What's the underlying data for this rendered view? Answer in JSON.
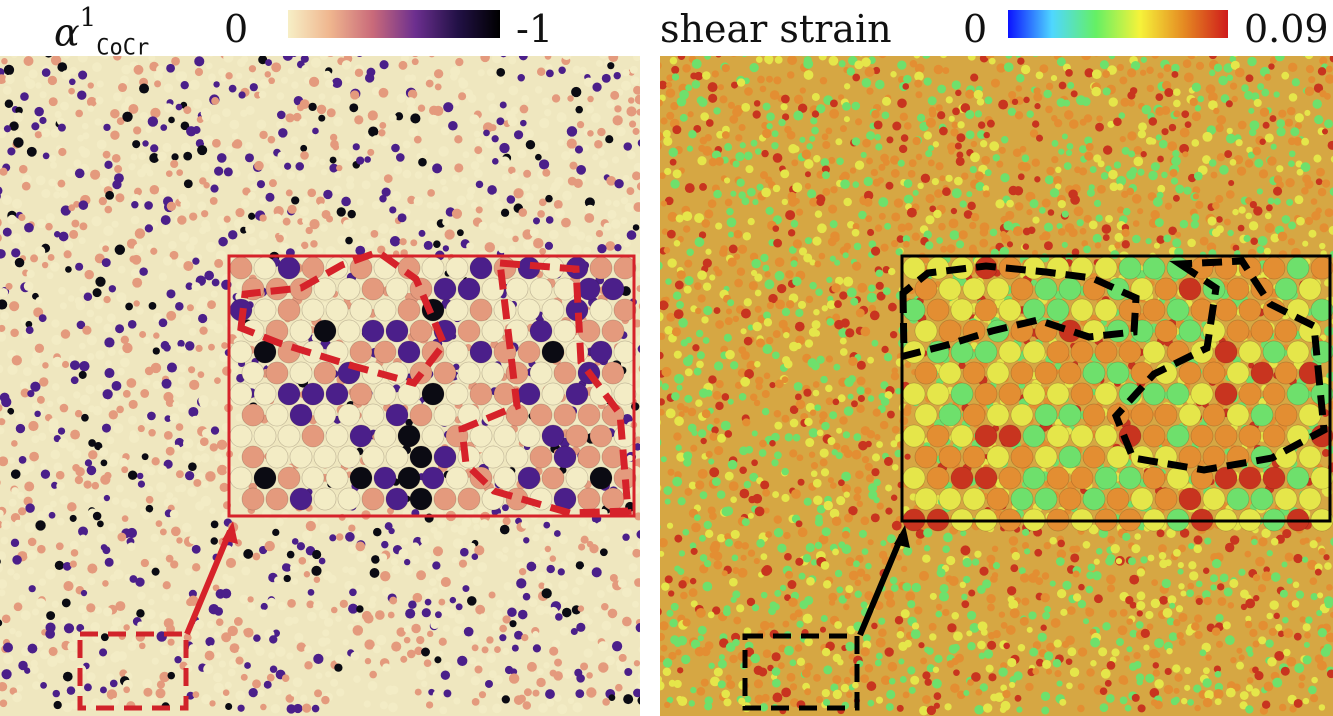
{
  "left_panel": {
    "symbol": "α",
    "superscript": "1",
    "subscript": "CoCr",
    "colorbar": {
      "min_label": "0",
      "max_label": "-1",
      "stops": [
        "#f7efc6",
        "#efb58e",
        "#c96a7a",
        "#6c2f8f",
        "#221146",
        "#000000"
      ]
    },
    "palette": {
      "background": "#efe7bf",
      "cream": "#f3ecc5",
      "salmon": "#e49a7d",
      "purple": "#4b1f8a",
      "dark": "#0b0b13",
      "highlight": "#d6222a"
    }
  },
  "right_panel": {
    "title": "shear strain",
    "colorbar": {
      "min_label": "0",
      "max_label": "0.09",
      "stops": [
        "#0b12ff",
        "#4fd7ff",
        "#65f064",
        "#f6f33a",
        "#e58a22",
        "#cf1b1b"
      ]
    },
    "palette": {
      "background": "#d6a743",
      "green": "#6ee06c",
      "yellow": "#e5e64a",
      "orange": "#e38e32",
      "red": "#c8341f",
      "highlight": "#000000"
    }
  }
}
